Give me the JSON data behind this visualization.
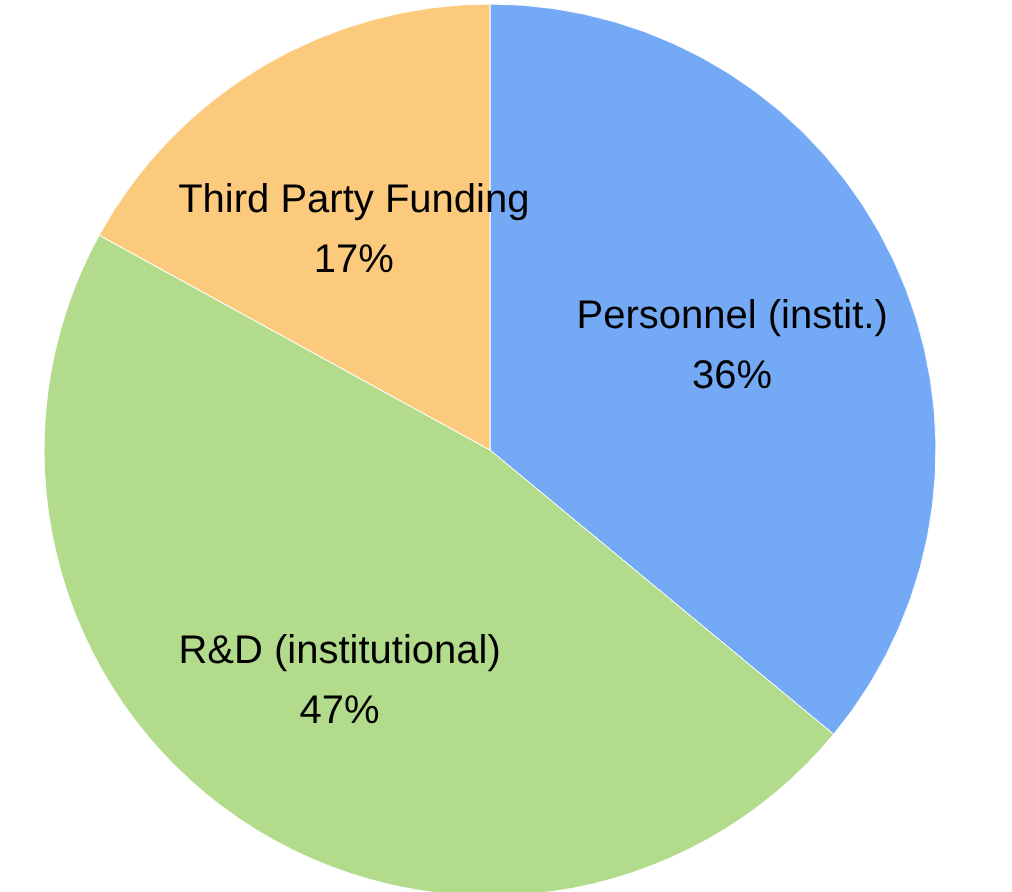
{
  "chart_data": {
    "type": "pie",
    "categories": [
      "Personnel (instit.)",
      "R&D (institutional)",
      "Third Party Funding"
    ],
    "values": [
      36,
      47,
      17
    ],
    "colors": [
      "#73a9f5",
      "#b3db8c",
      "#fcca7c"
    ],
    "value_labels": [
      "36%",
      "47%",
      "17%"
    ]
  }
}
